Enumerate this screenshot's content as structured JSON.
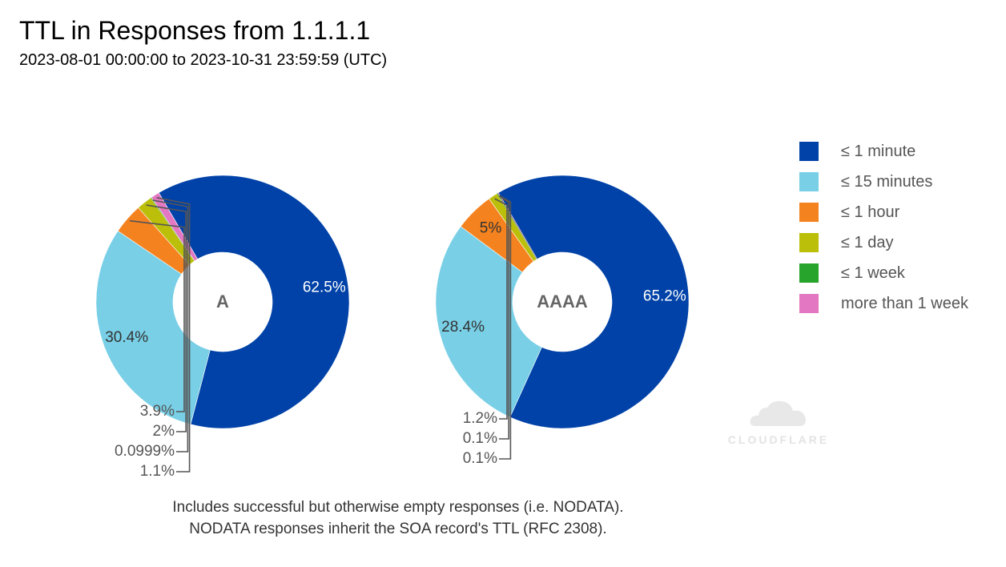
{
  "header": {
    "title": "TTL in Responses from 1.1.1.1",
    "subtitle": "2023-08-01 00:00:00 to 2023-10-31 23:59:59 (UTC)"
  },
  "legend": [
    {
      "label": "≤ 1 minute",
      "color": "#0042a8"
    },
    {
      "label": "≤ 15 minutes",
      "color": "#78cfe6"
    },
    {
      "label": "≤ 1 hour",
      "color": "#f4821f"
    },
    {
      "label": "≤ 1 day",
      "color": "#bbbf0a"
    },
    {
      "label": "≤ 1 week",
      "color": "#26a42b"
    },
    {
      "label": "more than 1 week",
      "color": "#e377c2"
    }
  ],
  "chart_data": [
    {
      "type": "pie",
      "center_label": "A",
      "slices": [
        {
          "category": "≤ 1 minute",
          "value": 62.5,
          "label": "62.5%"
        },
        {
          "category": "≤ 15 minutes",
          "value": 30.4,
          "label": "30.4%"
        },
        {
          "category": "≤ 1 hour",
          "value": 3.9,
          "label": "3.9%"
        },
        {
          "category": "≤ 1 day",
          "value": 2,
          "label": "2%"
        },
        {
          "category": "≤ 1 week",
          "value": 0.0999,
          "label": "0.0999%"
        },
        {
          "category": "more than 1 week",
          "value": 1.1,
          "label": "1.1%"
        }
      ]
    },
    {
      "type": "pie",
      "center_label": "AAAA",
      "slices": [
        {
          "category": "≤ 1 minute",
          "value": 65.2,
          "label": "65.2%"
        },
        {
          "category": "≤ 15 minutes",
          "value": 28.4,
          "label": "28.4%"
        },
        {
          "category": "≤ 1 hour",
          "value": 5,
          "label": "5%"
        },
        {
          "category": "≤ 1 day",
          "value": 1.2,
          "label": "1.2%"
        },
        {
          "category": "≤ 1 week",
          "value": 0.1,
          "label": "0.1%"
        },
        {
          "category": "more than 1 week",
          "value": 0.1,
          "label": "0.1%"
        }
      ]
    }
  ],
  "footnote": {
    "line1": "Includes successful but otherwise empty responses (i.e. NODATA).",
    "line2": "NODATA responses inherit the SOA record's TTL (RFC 2308)."
  },
  "watermark": {
    "text": "CLOUDFLARE"
  }
}
